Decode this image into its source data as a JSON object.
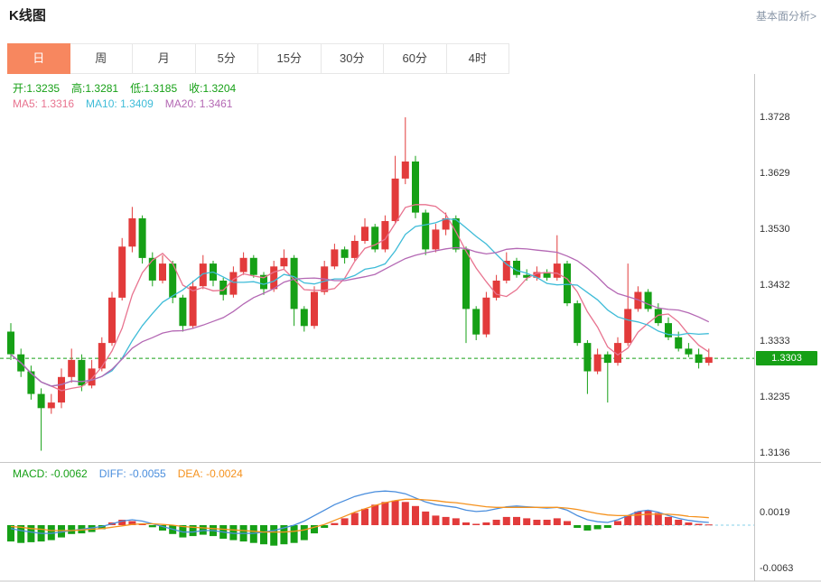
{
  "header": {
    "title": "K线图",
    "link": "基本面分析>"
  },
  "tabs": [
    {
      "name": "day",
      "label": "日",
      "active": true
    },
    {
      "name": "week",
      "label": "周",
      "active": false
    },
    {
      "name": "month",
      "label": "月",
      "active": false
    },
    {
      "name": "5min",
      "label": "5分",
      "active": false
    },
    {
      "name": "15min",
      "label": "15分",
      "active": false
    },
    {
      "name": "30min",
      "label": "30分",
      "active": false
    },
    {
      "name": "60min",
      "label": "60分",
      "active": false
    },
    {
      "name": "4hour",
      "label": "4时",
      "active": false
    }
  ],
  "main_chart": {
    "ohlc_info": [
      {
        "name": "open",
        "label": "开:",
        "value": "1.3235",
        "color": "ohlc_text"
      },
      {
        "name": "high",
        "label": "高:",
        "value": "1.3281",
        "color": "ohlc_text"
      },
      {
        "name": "low",
        "label": "低:",
        "value": "1.3185",
        "color": "ohlc_text"
      },
      {
        "name": "close",
        "label": "收:",
        "value": "1.3204",
        "color": "ohlc_text"
      }
    ],
    "ma_info": [
      {
        "name": "ma5",
        "label": "MA5: ",
        "value": "1.3316",
        "color": "ma5"
      },
      {
        "name": "ma10",
        "label": "MA10: ",
        "value": "1.3409",
        "color": "ma10"
      },
      {
        "name": "ma20",
        "label": "MA20: ",
        "value": "1.3461",
        "color": "ma20"
      }
    ],
    "current_price_label": "1.3303"
  },
  "macd_panel": {
    "info": [
      {
        "name": "macd",
        "label": "MACD: ",
        "value": "-0.0062",
        "color": "down"
      },
      {
        "name": "diff",
        "label": "DIFF: ",
        "value": "-0.0055",
        "color": "diff"
      },
      {
        "name": "dea",
        "label": "DEA: ",
        "value": "-0.0024",
        "color": "dea"
      }
    ]
  },
  "colors": {
    "up": "#e23b3b",
    "down": "#16a016",
    "ma5": "#e8738f",
    "ma10": "#3fbcd8",
    "ma20": "#b468b4",
    "diff": "#4a8edd",
    "dea": "#f5921e",
    "accent": "#f7875f",
    "ohlc_text": "#16a016",
    "axis_text": "#333333",
    "link_text": "#8a97a8",
    "border": "#c6c6c6",
    "zero_dash": "#86d2e8"
  },
  "chart_data": [
    {
      "type": "candlestick",
      "panel": "price",
      "title": "K线图",
      "x_count": 70,
      "ohlc": [
        [
          1.335,
          1.3365,
          1.33,
          1.331
        ],
        [
          1.331,
          1.332,
          1.327,
          1.328
        ],
        [
          1.328,
          1.329,
          1.323,
          1.324
        ],
        [
          1.324,
          1.325,
          1.314,
          1.3215
        ],
        [
          1.3215,
          1.324,
          1.3205,
          1.3225
        ],
        [
          1.3225,
          1.3285,
          1.3215,
          1.327
        ],
        [
          1.327,
          1.332,
          1.326,
          1.33
        ],
        [
          1.33,
          1.331,
          1.3245,
          1.3255
        ],
        [
          1.3255,
          1.33,
          1.325,
          1.3285
        ],
        [
          1.3285,
          1.334,
          1.328,
          1.333
        ],
        [
          1.333,
          1.342,
          1.3325,
          1.341
        ],
        [
          1.341,
          1.3515,
          1.3405,
          1.35
        ],
        [
          1.35,
          1.357,
          1.349,
          1.355
        ],
        [
          1.355,
          1.3555,
          1.347,
          1.348
        ],
        [
          1.348,
          1.349,
          1.343,
          1.344
        ],
        [
          1.344,
          1.3485,
          1.3435,
          1.347
        ],
        [
          1.347,
          1.3475,
          1.34,
          1.341
        ],
        [
          1.341,
          1.3415,
          1.335,
          1.336
        ],
        [
          1.336,
          1.344,
          1.3355,
          1.343
        ],
        [
          1.343,
          1.3485,
          1.3425,
          1.347
        ],
        [
          1.347,
          1.3475,
          1.343,
          1.344
        ],
        [
          1.344,
          1.3445,
          1.3405,
          1.3415
        ],
        [
          1.3415,
          1.3465,
          1.341,
          1.3455
        ],
        [
          1.3455,
          1.349,
          1.345,
          1.348
        ],
        [
          1.348,
          1.3485,
          1.3445,
          1.345
        ],
        [
          1.345,
          1.3455,
          1.3415,
          1.3425
        ],
        [
          1.3425,
          1.3475,
          1.342,
          1.3465
        ],
        [
          1.3465,
          1.3495,
          1.346,
          1.348
        ],
        [
          1.348,
          1.3485,
          1.336,
          1.339
        ],
        [
          1.339,
          1.3395,
          1.335,
          1.336
        ],
        [
          1.336,
          1.343,
          1.3355,
          1.342
        ],
        [
          1.342,
          1.3475,
          1.3415,
          1.3465
        ],
        [
          1.3465,
          1.3505,
          1.346,
          1.3495
        ],
        [
          1.3495,
          1.35,
          1.347,
          1.348
        ],
        [
          1.348,
          1.352,
          1.3475,
          1.351
        ],
        [
          1.351,
          1.355,
          1.3505,
          1.3535
        ],
        [
          1.3535,
          1.354,
          1.349,
          1.3495
        ],
        [
          1.3495,
          1.3555,
          1.349,
          1.3545
        ],
        [
          1.3545,
          1.366,
          1.354,
          1.362
        ],
        [
          1.362,
          1.3728,
          1.361,
          1.365
        ],
        [
          1.365,
          1.366,
          1.355,
          1.356
        ],
        [
          1.356,
          1.3565,
          1.3485,
          1.3495
        ],
        [
          1.3495,
          1.354,
          1.349,
          1.353
        ],
        [
          1.353,
          1.356,
          1.352,
          1.355
        ],
        [
          1.355,
          1.3555,
          1.349,
          1.3495
        ],
        [
          1.3495,
          1.35,
          1.333,
          1.339
        ],
        [
          1.339,
          1.3395,
          1.3335,
          1.3345
        ],
        [
          1.3345,
          1.342,
          1.334,
          1.341
        ],
        [
          1.341,
          1.345,
          1.3405,
          1.344
        ],
        [
          1.344,
          1.349,
          1.3435,
          1.3475
        ],
        [
          1.3475,
          1.348,
          1.3445,
          1.345
        ],
        [
          1.345,
          1.346,
          1.344,
          1.3445
        ],
        [
          1.3445,
          1.3465,
          1.344,
          1.3455
        ],
        [
          1.3455,
          1.346,
          1.344,
          1.3445
        ],
        [
          1.3445,
          1.352,
          1.344,
          1.347
        ],
        [
          1.347,
          1.3475,
          1.3395,
          1.34
        ],
        [
          1.34,
          1.3405,
          1.3325,
          1.333
        ],
        [
          1.333,
          1.3335,
          1.324,
          1.328
        ],
        [
          1.328,
          1.332,
          1.3275,
          1.331
        ],
        [
          1.331,
          1.3315,
          1.3225,
          1.3295
        ],
        [
          1.3295,
          1.334,
          1.329,
          1.333
        ],
        [
          1.333,
          1.347,
          1.3325,
          1.339
        ],
        [
          1.339,
          1.343,
          1.3385,
          1.342
        ],
        [
          1.342,
          1.3425,
          1.3385,
          1.339
        ],
        [
          1.339,
          1.34,
          1.336,
          1.3365
        ],
        [
          1.3365,
          1.3375,
          1.3335,
          1.334
        ],
        [
          1.334,
          1.335,
          1.3315,
          1.332
        ],
        [
          1.332,
          1.333,
          1.3305,
          1.331
        ],
        [
          1.331,
          1.332,
          1.3285,
          1.3295
        ],
        [
          1.3295,
          1.332,
          1.329,
          1.3305
        ]
      ],
      "ma_overlays": [
        {
          "name": "MA5",
          "period": 5,
          "color_key": "ma5"
        },
        {
          "name": "MA10",
          "period": 10,
          "color_key": "ma10"
        },
        {
          "name": "MA20",
          "period": 20,
          "color_key": "ma20"
        }
      ],
      "y_axis": {
        "side": "right",
        "ticks": [
          "1.3728",
          "1.3629",
          "1.3530",
          "1.3432",
          "1.3333",
          "1.3235",
          "1.3136"
        ]
      },
      "current_price": 1.3303
    },
    {
      "type": "bar",
      "panel": "macd",
      "histogram": [
        -0.0024,
        -0.0026,
        -0.0025,
        -0.0024,
        -0.0022,
        -0.0018,
        -0.0013,
        -0.0012,
        -0.001,
        -0.0006,
        0.0004,
        0.0008,
        0.0006,
        0.0002,
        -0.0003,
        -0.0008,
        -0.0013,
        -0.0018,
        -0.0016,
        -0.0014,
        -0.0016,
        -0.002,
        -0.0022,
        -0.0024,
        -0.0026,
        -0.0028,
        -0.003,
        -0.0028,
        -0.0026,
        -0.0022,
        -0.0012,
        -0.0004,
        0.0003,
        0.001,
        0.0018,
        0.0024,
        0.003,
        0.0034,
        0.0036,
        0.0034,
        0.0028,
        0.002,
        0.0014,
        0.0012,
        0.001,
        0.0004,
        0.0002,
        0.0004,
        0.0008,
        0.0012,
        0.0012,
        0.001,
        0.0008,
        0.0008,
        0.001,
        0.0006,
        -0.0004,
        -0.0008,
        -0.0006,
        -0.0004,
        0.0006,
        0.0014,
        0.002,
        0.0022,
        0.0018,
        0.0012,
        0.0008,
        0.0004,
        0.0002,
        0.0001
      ],
      "series": [
        {
          "name": "DIFF",
          "color_key": "diff",
          "values": [
            -0.0005,
            -0.0008,
            -0.001,
            -0.0012,
            -0.0012,
            -0.001,
            -0.0008,
            -0.0006,
            -0.0004,
            -0.0002,
            0.0002,
            0.0006,
            0.0008,
            0.0006,
            0.0002,
            -0.0002,
            -0.0006,
            -0.001,
            -0.001,
            -0.0008,
            -0.0008,
            -0.001,
            -0.0012,
            -0.0012,
            -0.0012,
            -0.001,
            -0.0008,
            -0.0004,
            0.0,
            0.0006,
            0.0014,
            0.0022,
            0.003,
            0.0036,
            0.0042,
            0.0046,
            0.0049,
            0.005,
            0.0049,
            0.0046,
            0.004,
            0.0034,
            0.003,
            0.0028,
            0.0026,
            0.0022,
            0.002,
            0.0021,
            0.0024,
            0.0027,
            0.0028,
            0.0027,
            0.0026,
            0.0025,
            0.0026,
            0.0022,
            0.0014,
            0.0008,
            0.0005,
            0.0004,
            0.0008,
            0.0014,
            0.002,
            0.0022,
            0.0019,
            0.0014,
            0.001,
            0.0007,
            0.0005,
            0.0004
          ]
        },
        {
          "name": "DEA",
          "color_key": "dea",
          "values": [
            -0.0002,
            -0.0003,
            -0.0005,
            -0.0006,
            -0.0008,
            -0.0008,
            -0.0008,
            -0.0007,
            -0.0006,
            -0.0005,
            -0.0003,
            -0.0001,
            0.0001,
            0.0002,
            0.0002,
            0.0001,
            0.0,
            -0.0002,
            -0.0003,
            -0.0004,
            -0.0005,
            -0.0006,
            -0.0007,
            -0.0008,
            -0.0009,
            -0.001,
            -0.001,
            -0.001,
            -0.0009,
            -0.0007,
            -0.0003,
            0.0001,
            0.0007,
            0.0013,
            0.0019,
            0.0024,
            0.0029,
            0.0033,
            0.0036,
            0.0038,
            0.0038,
            0.0037,
            0.0036,
            0.0034,
            0.0033,
            0.0031,
            0.0029,
            0.0027,
            0.0026,
            0.0026,
            0.0026,
            0.0026,
            0.0026,
            0.0026,
            0.0026,
            0.0025,
            0.0023,
            0.002,
            0.0017,
            0.0015,
            0.0014,
            0.0014,
            0.0015,
            0.0016,
            0.0016,
            0.0016,
            0.0015,
            0.0013,
            0.0012,
            0.0011
          ]
        }
      ],
      "y_axis": {
        "side": "right",
        "ticks": [
          "0.0019",
          "-0.0063"
        ]
      }
    }
  ]
}
